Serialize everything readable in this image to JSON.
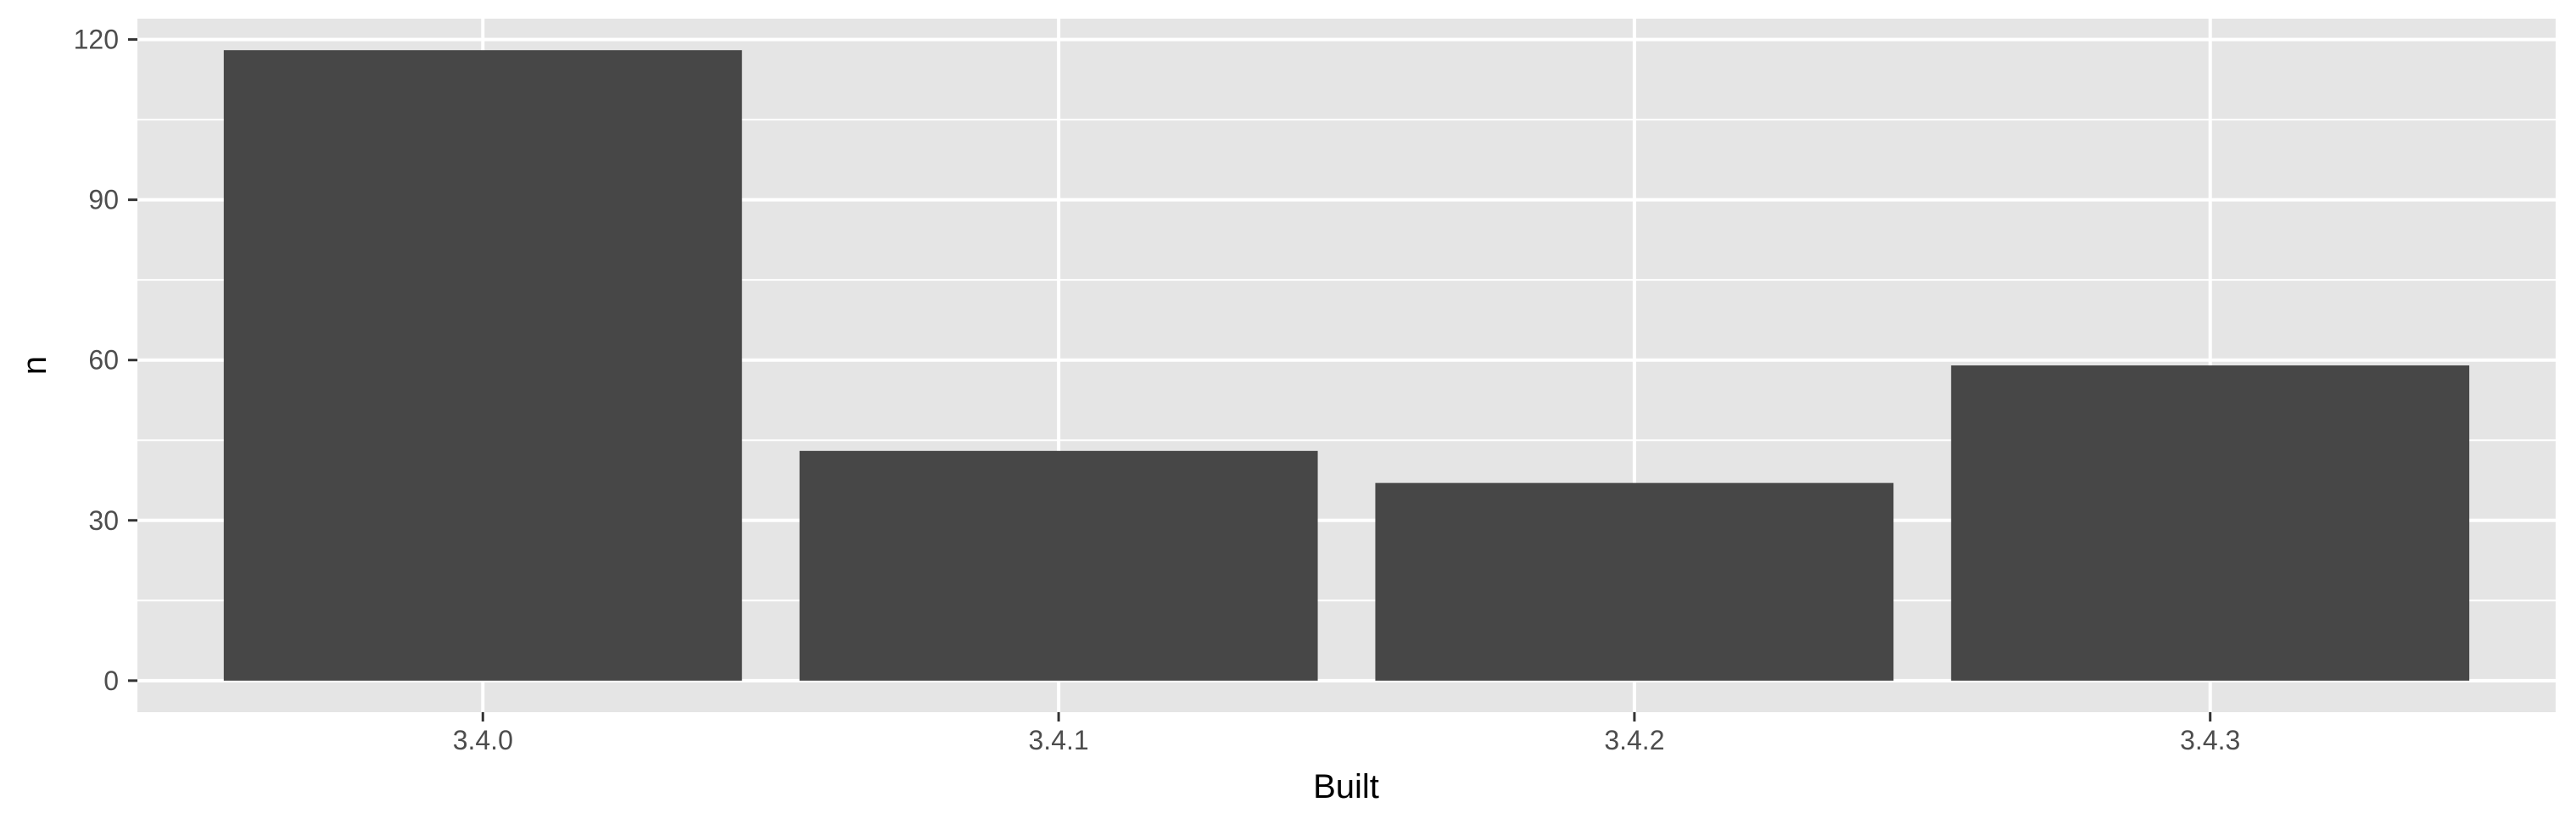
{
  "chart_data": {
    "type": "bar",
    "title": "",
    "xlabel": "Built",
    "ylabel": "n",
    "categories": [
      "3.4.0",
      "3.4.1",
      "3.4.2",
      "3.4.3"
    ],
    "values": [
      118,
      43,
      37,
      59
    ],
    "ylim": [
      -5.9,
      123.9
    ],
    "yticks": [
      0,
      30,
      60,
      90,
      120
    ],
    "ytick_labels": [
      "0",
      "30",
      "60",
      "90",
      "120"
    ],
    "grid": true,
    "legend": "none",
    "colors": {
      "bar": "#474747",
      "panel": "#e5e5e5",
      "grid": "#ffffff",
      "tick_text": "#4d4d4d",
      "axis_title": "#000000"
    }
  }
}
